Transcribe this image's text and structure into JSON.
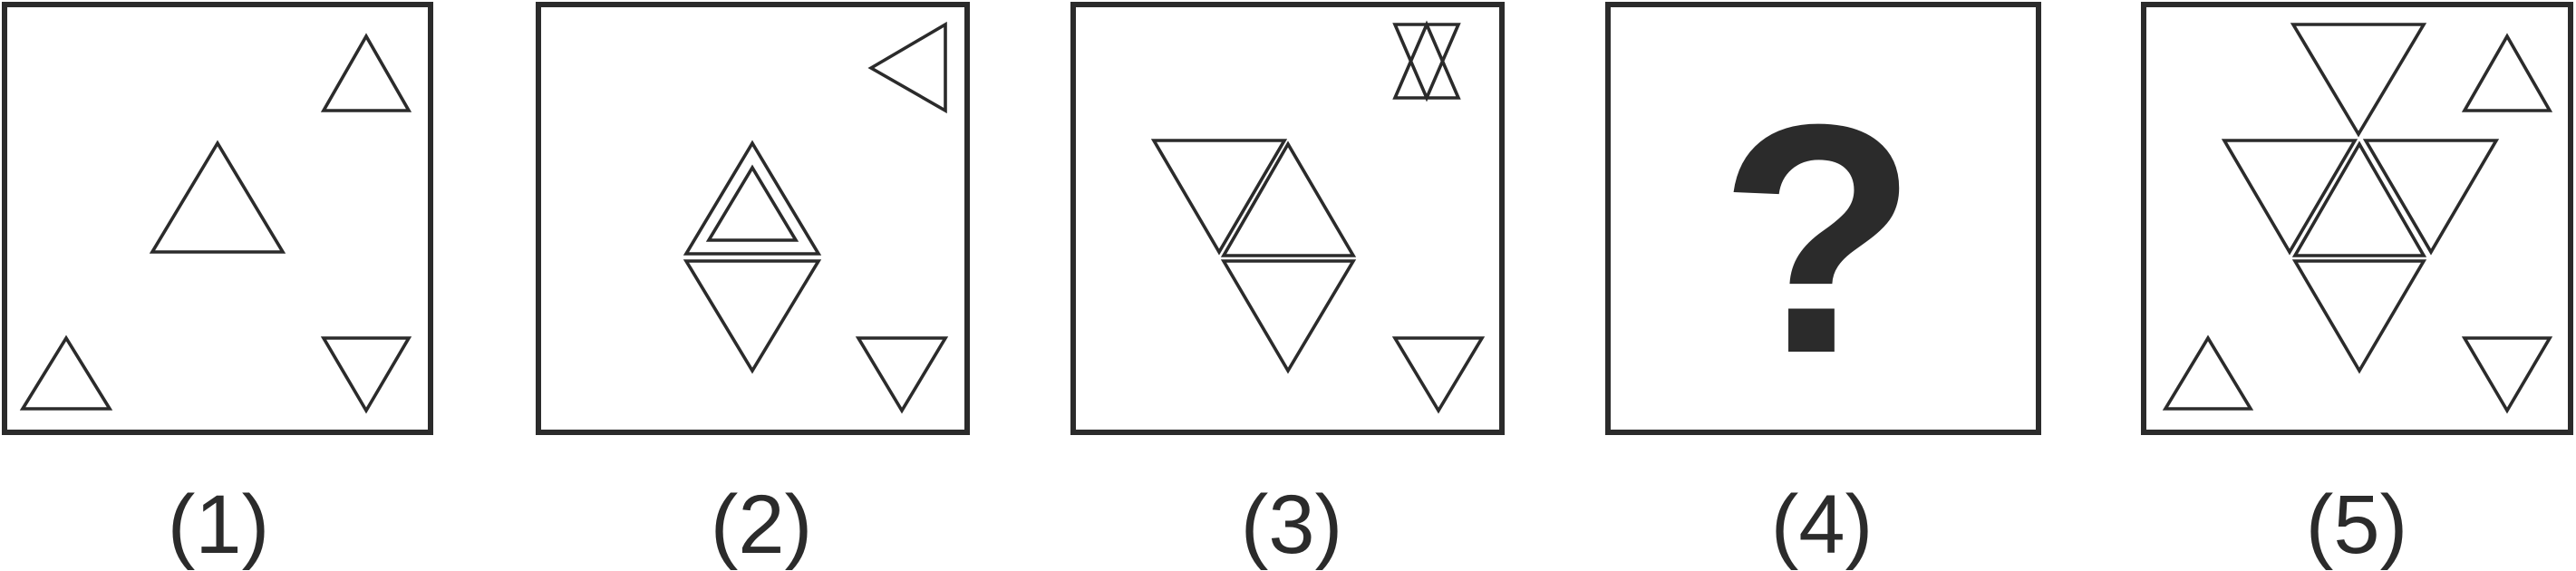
{
  "panels": [
    {
      "label": "(1)"
    },
    {
      "label": "(2)"
    },
    {
      "label": "(3)"
    },
    {
      "label": "(4)",
      "content": "?"
    },
    {
      "label": "(5)"
    }
  ],
  "colors": {
    "stroke": "#2b2b2b",
    "background": "#ffffff"
  }
}
